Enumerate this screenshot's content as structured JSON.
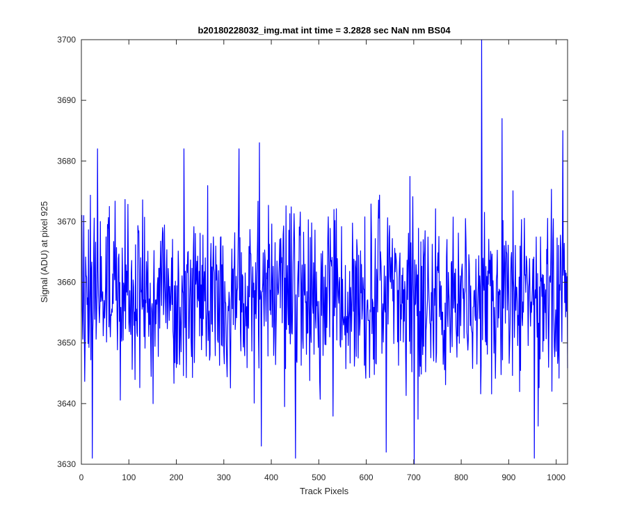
{
  "chart_data": {
    "type": "line",
    "title": "b20180228032_img.mat int time = 3.2828 sec  NaN nm BS04",
    "xlabel": "Track Pixels",
    "ylabel": "Signal (ADU) at pixel 925",
    "xlim": [
      0,
      1024
    ],
    "ylim": [
      3630,
      3700
    ],
    "xticks": [
      0,
      100,
      200,
      300,
      400,
      500,
      600,
      700,
      800,
      900,
      1000
    ],
    "yticks": [
      3630,
      3640,
      3650,
      3660,
      3670,
      3680,
      3690,
      3700
    ],
    "grid": false,
    "legend": "none",
    "line_color": "#0000ff",
    "n_points": 1024,
    "seed": 20180228,
    "mean": 3658,
    "std": 7,
    "spikes": [
      {
        "x": 4,
        "y": 3671
      },
      {
        "x": 22,
        "y": 3631
      },
      {
        "x": 33,
        "y": 3682
      },
      {
        "x": 150,
        "y": 3640
      },
      {
        "x": 331,
        "y": 3682
      },
      {
        "x": 374,
        "y": 3683
      },
      {
        "x": 378,
        "y": 3633
      },
      {
        "x": 450,
        "y": 3631
      },
      {
        "x": 641,
        "y": 3632
      },
      {
        "x": 700,
        "y": 3630
      },
      {
        "x": 842,
        "y": 3700
      },
      {
        "x": 885,
        "y": 3687
      },
      {
        "x": 953,
        "y": 3631
      },
      {
        "x": 1013,
        "y": 3685
      }
    ]
  }
}
